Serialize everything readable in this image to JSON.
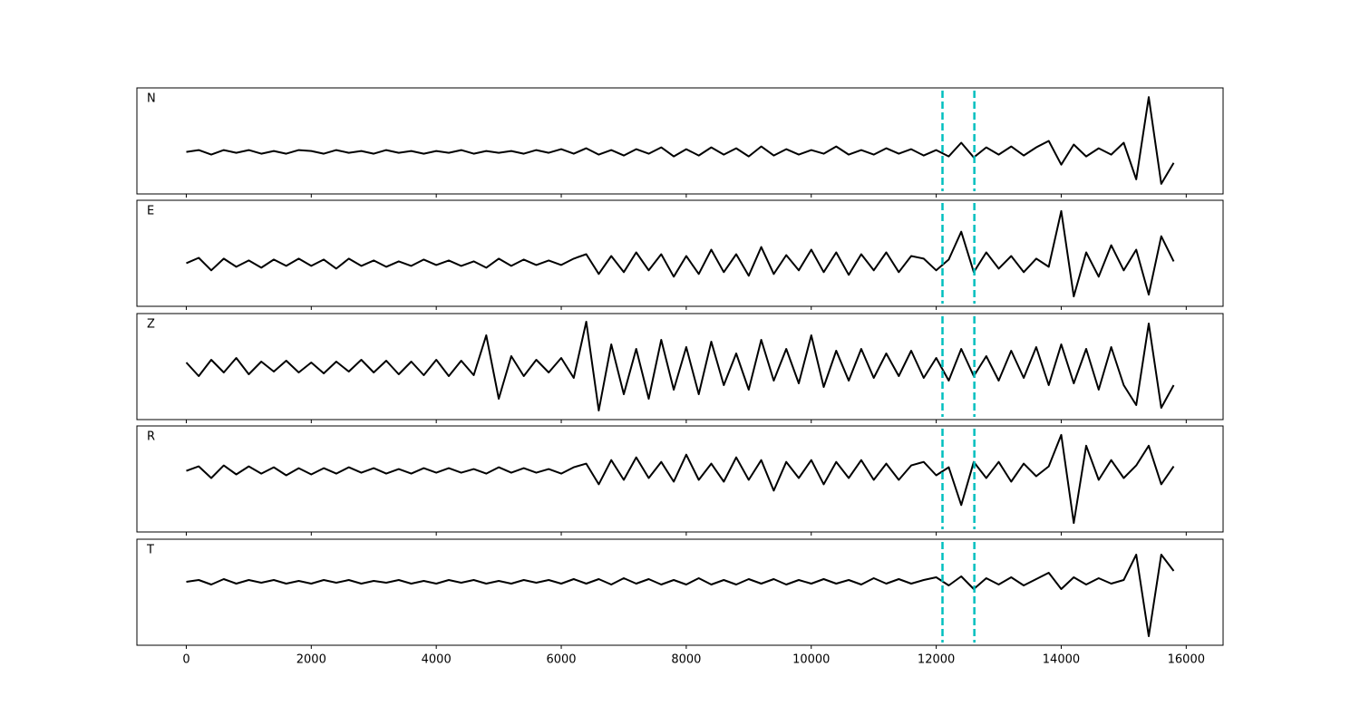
{
  "chart_data": [
    {
      "type": "line",
      "label": "N",
      "color": "#000000",
      "xlim": [
        -790,
        16590
      ],
      "ylim": [
        -0.46,
        0.7
      ],
      "xticks": [
        0,
        2000,
        4000,
        6000,
        8000,
        10000,
        12000,
        14000,
        16000
      ],
      "vlines": [
        12100,
        12610
      ],
      "vline_color": "#00bfbf",
      "x": [
        0,
        200,
        400,
        600,
        800,
        1000,
        1200,
        1400,
        1600,
        1800,
        2000,
        2200,
        2400,
        2600,
        2800,
        3000,
        3200,
        3400,
        3600,
        3800,
        4000,
        4200,
        4400,
        4600,
        4800,
        5000,
        5200,
        5400,
        5600,
        5800,
        6000,
        6200,
        6400,
        6600,
        6800,
        7000,
        7200,
        7400,
        7600,
        7800,
        8000,
        8200,
        8400,
        8600,
        8800,
        9000,
        9200,
        9400,
        9600,
        9800,
        10000,
        10200,
        10400,
        10600,
        10800,
        11000,
        11200,
        11400,
        11600,
        11800,
        12000,
        12200,
        12400,
        12600,
        12800,
        13000,
        13200,
        13400,
        13600,
        13800,
        14000,
        14200,
        14400,
        14600,
        14800,
        15000,
        15200,
        15400,
        15600,
        15800
      ],
      "values": [
        0,
        0.02,
        -0.03,
        0.02,
        -0.01,
        0.02,
        -0.02,
        0.01,
        -0.02,
        0.02,
        0.01,
        -0.02,
        0.02,
        -0.01,
        0.01,
        -0.02,
        0.02,
        -0.01,
        0.01,
        -0.02,
        0.01,
        -0.01,
        0.02,
        -0.02,
        0.01,
        -0.01,
        0.01,
        -0.02,
        0.02,
        -0.01,
        0.03,
        -0.02,
        0.04,
        -0.03,
        0.02,
        -0.04,
        0.03,
        -0.02,
        0.05,
        -0.05,
        0.03,
        -0.04,
        0.05,
        -0.03,
        0.04,
        -0.05,
        0.06,
        -0.04,
        0.03,
        -0.03,
        0.02,
        -0.02,
        0.06,
        -0.03,
        0.02,
        -0.03,
        0.04,
        -0.02,
        0.03,
        -0.04,
        0.02,
        -0.05,
        0.1,
        -0.06,
        0.05,
        -0.03,
        0.06,
        -0.04,
        0.05,
        0.12,
        -0.14,
        0.08,
        -0.05,
        0.04,
        -0.03,
        0.1,
        -0.3,
        0.6,
        -0.35,
        -0.12
      ]
    },
    {
      "type": "line",
      "label": "E",
      "color": "#000000",
      "xlim": [
        -790,
        16590
      ],
      "ylim": [
        -0.48,
        0.7
      ],
      "xticks": [
        0,
        2000,
        4000,
        6000,
        8000,
        10000,
        12000,
        14000,
        16000
      ],
      "vlines": [
        12100,
        12610
      ],
      "vline_color": "#00bfbf",
      "x": [
        0,
        200,
        400,
        600,
        800,
        1000,
        1200,
        1400,
        1600,
        1800,
        2000,
        2200,
        2400,
        2600,
        2800,
        3000,
        3200,
        3400,
        3600,
        3800,
        4000,
        4200,
        4400,
        4600,
        4800,
        5000,
        5200,
        5400,
        5600,
        5800,
        6000,
        6200,
        6400,
        6600,
        6800,
        7000,
        7200,
        7400,
        7600,
        7800,
        8000,
        8200,
        8400,
        8600,
        8800,
        9000,
        9200,
        9400,
        9600,
        9800,
        10000,
        10200,
        10400,
        10600,
        10800,
        11000,
        11200,
        11400,
        11600,
        11800,
        12000,
        12200,
        12400,
        12600,
        12800,
        13000,
        13200,
        13400,
        13600,
        13800,
        14000,
        14200,
        14400,
        14600,
        14800,
        15000,
        15200,
        15400,
        15600,
        15800
      ],
      "values": [
        0,
        0.06,
        -0.08,
        0.05,
        -0.04,
        0.03,
        -0.05,
        0.04,
        -0.03,
        0.05,
        -0.03,
        0.04,
        -0.06,
        0.05,
        -0.03,
        0.03,
        -0.04,
        0.02,
        -0.03,
        0.04,
        -0.02,
        0.03,
        -0.03,
        0.02,
        -0.05,
        0.05,
        -0.03,
        0.04,
        -0.02,
        0.03,
        -0.02,
        0.05,
        0.1,
        -0.12,
        0.08,
        -0.1,
        0.12,
        -0.08,
        0.1,
        -0.15,
        0.08,
        -0.12,
        0.15,
        -0.1,
        0.1,
        -0.14,
        0.18,
        -0.12,
        0.09,
        -0.08,
        0.15,
        -0.1,
        0.12,
        -0.13,
        0.1,
        -0.08,
        0.12,
        -0.1,
        0.08,
        0.05,
        -0.08,
        0.04,
        0.35,
        -0.1,
        0.12,
        -0.06,
        0.08,
        -0.1,
        0.05,
        -0.04,
        0.58,
        -0.37,
        0.12,
        -0.15,
        0.2,
        -0.08,
        0.15,
        -0.35,
        0.3,
        0.02
      ]
    },
    {
      "type": "line",
      "label": "Z",
      "color": "#000000",
      "xlim": [
        -790,
        16590
      ],
      "ylim": [
        -0.58,
        0.59
      ],
      "xticks": [
        0,
        2000,
        4000,
        6000,
        8000,
        10000,
        12000,
        14000,
        16000
      ],
      "vlines": [
        12100,
        12610
      ],
      "vline_color": "#00bfbf",
      "x": [
        0,
        200,
        400,
        600,
        800,
        1000,
        1200,
        1400,
        1600,
        1800,
        2000,
        2200,
        2400,
        2600,
        2800,
        3000,
        3200,
        3400,
        3600,
        3800,
        4000,
        4200,
        4400,
        4600,
        4800,
        5000,
        5200,
        5400,
        5600,
        5800,
        6000,
        6200,
        6400,
        6600,
        6800,
        7000,
        7200,
        7400,
        7600,
        7800,
        8000,
        8200,
        8400,
        8600,
        8800,
        9000,
        9200,
        9400,
        9600,
        9800,
        10000,
        10200,
        10400,
        10600,
        10800,
        11000,
        11200,
        11400,
        11600,
        11800,
        12000,
        12200,
        12400,
        12600,
        12800,
        13000,
        13200,
        13400,
        13600,
        13800,
        14000,
        14200,
        14400,
        14600,
        14800,
        15000,
        15200,
        15400,
        15600,
        15800
      ],
      "values": [
        0.05,
        -0.1,
        0.08,
        -0.06,
        0.1,
        -0.08,
        0.06,
        -0.05,
        0.07,
        -0.06,
        0.05,
        -0.07,
        0.06,
        -0.05,
        0.08,
        -0.06,
        0.07,
        -0.08,
        0.06,
        -0.09,
        0.08,
        -0.1,
        0.07,
        -0.09,
        0.35,
        -0.35,
        0.12,
        -0.1,
        0.08,
        -0.06,
        0.1,
        -0.12,
        0.5,
        -0.48,
        0.25,
        -0.3,
        0.2,
        -0.35,
        0.3,
        -0.25,
        0.22,
        -0.3,
        0.28,
        -0.2,
        0.15,
        -0.25,
        0.3,
        -0.15,
        0.2,
        -0.18,
        0.35,
        -0.22,
        0.18,
        -0.15,
        0.2,
        -0.12,
        0.15,
        -0.1,
        0.18,
        -0.12,
        0.1,
        -0.15,
        0.2,
        -0.1,
        0.12,
        -0.15,
        0.18,
        -0.12,
        0.22,
        -0.2,
        0.25,
        -0.18,
        0.2,
        -0.25,
        0.22,
        -0.2,
        -0.42,
        0.48,
        -0.45,
        -0.2
      ]
    },
    {
      "type": "line",
      "label": "R",
      "color": "#000000",
      "xlim": [
        -790,
        16590
      ],
      "ylim": [
        -0.68,
        0.5
      ],
      "xticks": [
        0,
        2000,
        4000,
        6000,
        8000,
        10000,
        12000,
        14000,
        16000
      ],
      "vlines": [
        12100,
        12610
      ],
      "vline_color": "#00bfbf",
      "x": [
        0,
        200,
        400,
        600,
        800,
        1000,
        1200,
        1400,
        1600,
        1800,
        2000,
        2200,
        2400,
        2600,
        2800,
        3000,
        3200,
        3400,
        3600,
        3800,
        4000,
        4200,
        4400,
        4600,
        4800,
        5000,
        5200,
        5400,
        5600,
        5800,
        6000,
        6200,
        6400,
        6600,
        6800,
        7000,
        7200,
        7400,
        7600,
        7800,
        8000,
        8200,
        8400,
        8600,
        8800,
        9000,
        9200,
        9400,
        9600,
        9800,
        10000,
        10200,
        10400,
        10600,
        10800,
        11000,
        11200,
        11400,
        11600,
        11800,
        12000,
        12200,
        12400,
        12600,
        12800,
        13000,
        13200,
        13400,
        13600,
        13800,
        14000,
        14200,
        14400,
        14600,
        14800,
        15000,
        15200,
        15400,
        15600,
        15800
      ],
      "values": [
        0,
        0.05,
        -0.08,
        0.06,
        -0.04,
        0.05,
        -0.03,
        0.04,
        -0.05,
        0.03,
        -0.04,
        0.03,
        -0.03,
        0.04,
        -0.02,
        0.03,
        -0.03,
        0.02,
        -0.03,
        0.03,
        -0.02,
        0.03,
        -0.02,
        0.02,
        -0.03,
        0.04,
        -0.02,
        0.03,
        -0.02,
        0.02,
        -0.03,
        0.04,
        0.08,
        -0.15,
        0.12,
        -0.1,
        0.15,
        -0.08,
        0.1,
        -0.12,
        0.18,
        -0.1,
        0.08,
        -0.12,
        0.15,
        -0.1,
        0.12,
        -0.22,
        0.1,
        -0.08,
        0.12,
        -0.15,
        0.1,
        -0.08,
        0.12,
        -0.1,
        0.08,
        -0.1,
        0.06,
        0.1,
        -0.05,
        0.04,
        -0.38,
        0.1,
        -0.08,
        0.1,
        -0.12,
        0.08,
        -0.06,
        0.05,
        0.4,
        -0.58,
        0.28,
        -0.1,
        0.12,
        -0.08,
        0.06,
        0.28,
        -0.15,
        0.05
      ]
    },
    {
      "type": "line",
      "label": "T",
      "color": "#000000",
      "xlim": [
        -790,
        16590
      ],
      "ylim": [
        -0.7,
        0.47
      ],
      "xticks": [
        0,
        2000,
        4000,
        6000,
        8000,
        10000,
        12000,
        14000,
        16000
      ],
      "vlines": [
        12100,
        12610
      ],
      "vline_color": "#00bfbf",
      "x": [
        0,
        200,
        400,
        600,
        800,
        1000,
        1200,
        1400,
        1600,
        1800,
        2000,
        2200,
        2400,
        2600,
        2800,
        3000,
        3200,
        3400,
        3600,
        3800,
        4000,
        4200,
        4400,
        4600,
        4800,
        5000,
        5200,
        5400,
        5600,
        5800,
        6000,
        6200,
        6400,
        6600,
        6800,
        7000,
        7200,
        7400,
        7600,
        7800,
        8000,
        8200,
        8400,
        8600,
        8800,
        9000,
        9200,
        9400,
        9600,
        9800,
        10000,
        10200,
        10400,
        10600,
        10800,
        11000,
        11200,
        11400,
        11600,
        11800,
        12000,
        12200,
        12400,
        12600,
        12800,
        13000,
        13200,
        13400,
        13600,
        13800,
        14000,
        14200,
        14400,
        14600,
        14800,
        15000,
        15200,
        15400,
        15600,
        15800
      ],
      "values": [
        0,
        0.02,
        -0.03,
        0.03,
        -0.02,
        0.02,
        -0.01,
        0.02,
        -0.02,
        0.01,
        -0.02,
        0.02,
        -0.01,
        0.02,
        -0.02,
        0.01,
        -0.01,
        0.02,
        -0.02,
        0.01,
        -0.02,
        0.02,
        -0.01,
        0.02,
        -0.02,
        0.01,
        -0.02,
        0.02,
        -0.01,
        0.02,
        -0.02,
        0.03,
        -0.02,
        0.03,
        -0.03,
        0.04,
        -0.02,
        0.03,
        -0.03,
        0.02,
        -0.03,
        0.04,
        -0.03,
        0.02,
        -0.03,
        0.03,
        -0.02,
        0.03,
        -0.03,
        0.02,
        -0.02,
        0.03,
        -0.02,
        0.02,
        -0.03,
        0.04,
        -0.02,
        0.03,
        -0.02,
        0.02,
        0.05,
        -0.04,
        0.06,
        -0.08,
        0.04,
        -0.03,
        0.05,
        -0.04,
        0.03,
        0.1,
        -0.08,
        0.05,
        -0.03,
        0.04,
        -0.02,
        0.02,
        0.3,
        -0.6,
        0.3,
        0.12
      ]
    }
  ]
}
